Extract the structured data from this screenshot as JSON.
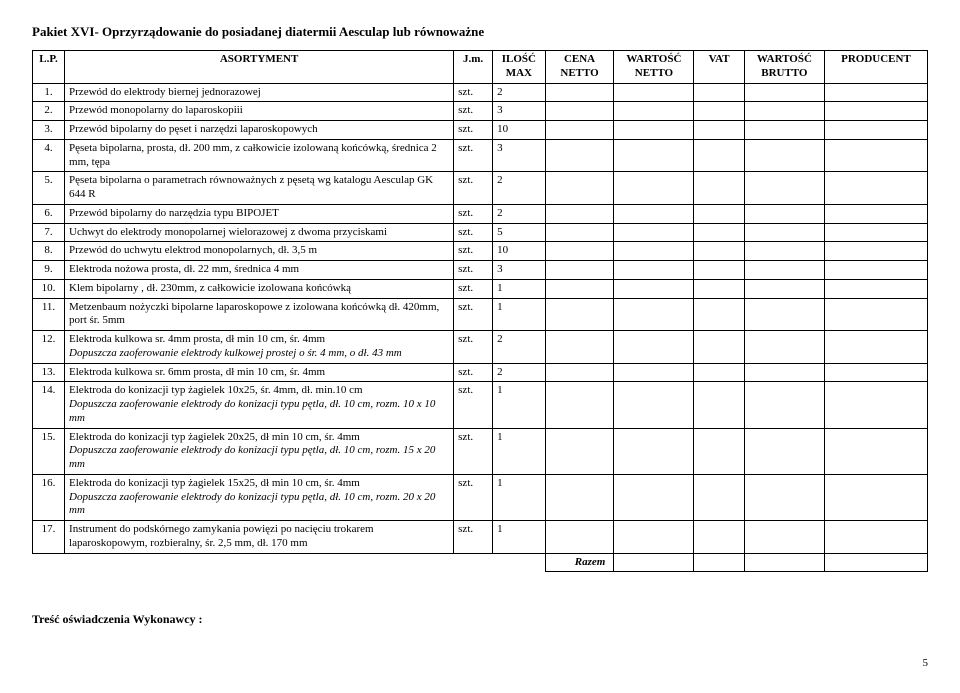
{
  "title": "Pakiet XVI- Oprzyrządowanie do posiadanej diatermii Aesculap lub równoważne",
  "headers": {
    "lp": "L.P.",
    "asortyment": "ASORTYMENT",
    "jm": "J.m.",
    "ilosc": "ILOŚĆ MAX",
    "cena": "CENA NETTO",
    "wn": "WARTOŚĆ NETTO",
    "vat": "VAT",
    "wb": "WARTOŚĆ BRUTTO",
    "producent": "PRODUCENT"
  },
  "rows": [
    {
      "lp": "1.",
      "desc": "Przewód do elektrody biernej jednorazowej",
      "jm": "szt.",
      "qty": "2"
    },
    {
      "lp": "2.",
      "desc": "Przewód monopolarny do laparoskopiii",
      "jm": "szt.",
      "qty": "3"
    },
    {
      "lp": "3.",
      "desc": "Przewód bipolarny do pęset i narzędzi laparoskopowych",
      "jm": "szt.",
      "qty": "10"
    },
    {
      "lp": "4.",
      "desc": "Pęseta bipolarna, prosta, dł. 200 mm, z całkowicie izolowaną końcówką, średnica 2 mm, tępa",
      "jm": "szt.",
      "qty": "3"
    },
    {
      "lp": "5.",
      "desc": "Pęseta bipolarna o parametrach równoważnych z pęsetą wg katalogu Aesculap GK 644 R",
      "jm": "szt.",
      "qty": "2"
    },
    {
      "lp": "6.",
      "desc": "Przewód bipolarny do narzędzia typu BIPOJET",
      "jm": "szt.",
      "qty": "2"
    },
    {
      "lp": "7.",
      "desc": "Uchwyt do elektrody monopolarnej wielorazowej z dwoma przyciskami",
      "jm": "szt.",
      "qty": "5"
    },
    {
      "lp": "8.",
      "desc": "Przewód do uchwytu elektrod monopolarnych, dł. 3,5 m",
      "jm": "szt.",
      "qty": "10"
    },
    {
      "lp": "9.",
      "desc": "Elektroda nożowa prosta, dł. 22 mm, średnica 4 mm",
      "jm": "szt.",
      "qty": "3"
    },
    {
      "lp": "10.",
      "desc": "Klem bipolarny , dł. 230mm, z całkowicie izolowana końcówką",
      "jm": "szt.",
      "qty": "1"
    },
    {
      "lp": "11.",
      "desc": "Metzenbaum nożyczki bipolarne laparoskopowe z izolowana końcówką dł. 420mm, port śr. 5mm",
      "jm": "szt.",
      "qty": "1"
    },
    {
      "lp": "12.",
      "desc": "Elektroda kulkowa sr. 4mm prosta, dł min 10 cm, śr. 4mm",
      "note": "Dopuszcza zaoferowanie elektrody kulkowej prostej o śr. 4 mm, o dł. 43 mm",
      "jm": "szt.",
      "qty": "2"
    },
    {
      "lp": "13.",
      "desc": "Elektroda kulkowa sr. 6mm prosta, dł min 10 cm, śr. 4mm",
      "jm": "szt.",
      "qty": "2"
    },
    {
      "lp": "14.",
      "desc": "Elektroda do konizacji typ żagielek 10x25, śr. 4mm, dł. min.10 cm",
      "note": "Dopuszcza zaoferowanie elektrody do konizacji typu pętla, dł. 10 cm, rozm. 10 x 10 mm",
      "jm": "szt.",
      "qty": "1"
    },
    {
      "lp": "15.",
      "desc": "Elektroda do konizacji typ żagielek 20x25, dł min 10 cm, śr. 4mm",
      "note": "Dopuszcza zaoferowanie elektrody do konizacji typu pętla, dł. 10 cm, rozm. 15 x 20 mm",
      "jm": "szt.",
      "qty": "1"
    },
    {
      "lp": "16.",
      "desc": "Elektroda do konizacji typ żagielek 15x25, dł min 10 cm, śr. 4mm",
      "note": "Dopuszcza zaoferowanie elektrody do konizacji typu pętla, dł. 10 cm, rozm. 20 x 20 mm",
      "jm": "szt.",
      "qty": "1"
    },
    {
      "lp": "17.",
      "desc": "Instrument do podskórnego zamykania powięzi po nacięciu trokarem laparoskopowym, rozbieralny, śr. 2,5 mm, dł. 170 mm",
      "jm": "szt.",
      "qty": "1"
    }
  ],
  "razem": "Razem",
  "footer": "Treść oświadczenia Wykonawcy :",
  "page": "5"
}
